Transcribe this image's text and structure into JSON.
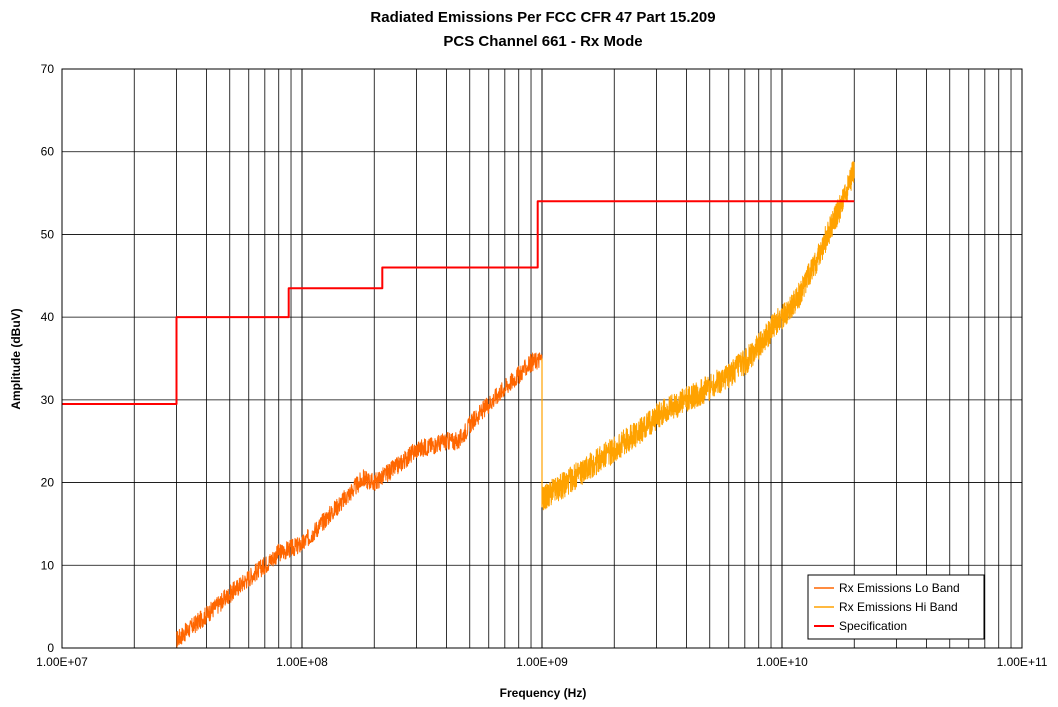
{
  "chart_data": {
    "type": "line",
    "title": "Radiated Emissions Per FCC CFR 47 Part 15.209",
    "subtitle": "PCS Channel 661 - Rx Mode",
    "xlabel": "Frequency (Hz)",
    "ylabel": "Amplitude (dBuV)",
    "x_scale": "log",
    "xlim": [
      10000000,
      100000000000
    ],
    "ylim": [
      0,
      70
    ],
    "x_tick_labels": [
      "1.00E+07",
      "1.00E+08",
      "1.00E+09",
      "1.00E+10",
      "1.00E+11"
    ],
    "y_tick_labels": [
      "0",
      "10",
      "20",
      "30",
      "40",
      "50",
      "60",
      "70"
    ],
    "grid": true,
    "legend_position": "bottom-right",
    "series": [
      {
        "name": "Rx Emissions Lo Band",
        "color": "#ff6600",
        "x": [
          30000000,
          40000000,
          50000000,
          60000000,
          70000000,
          80000000,
          100000000,
          120000000,
          150000000,
          180000000,
          200000000,
          250000000,
          300000000,
          350000000,
          400000000,
          450000000,
          500000000,
          600000000,
          700000000,
          800000000,
          900000000,
          1000000000
        ],
        "y": [
          1,
          4,
          6.5,
          8.5,
          10,
          11.5,
          12.5,
          15,
          18,
          20.5,
          20,
          22,
          24,
          24.5,
          25,
          25,
          27,
          29.5,
          31.5,
          33,
          34.5,
          35
        ]
      },
      {
        "name": "Rx Emissions Hi Band",
        "color": "#ffa200",
        "x": [
          1000000000,
          1200000000,
          1500000000,
          2000000000,
          2500000000,
          3000000000,
          4000000000,
          5000000000,
          6000000000,
          7000000000,
          8000000000,
          9000000000,
          10000000000,
          12000000000,
          14000000000,
          16000000000,
          18000000000,
          20000000000
        ],
        "y": [
          18,
          19.5,
          21.5,
          24,
          26,
          28,
          30,
          31.5,
          33,
          34.5,
          36.5,
          38.5,
          40,
          43,
          47,
          51,
          54,
          58
        ]
      },
      {
        "name": "Specification",
        "color": "#ff0000",
        "x": [
          10000000,
          30000000,
          30000000,
          88000000,
          88000000,
          216000000,
          216000000,
          960000000,
          960000000,
          20000000000
        ],
        "y": [
          29.5,
          29.5,
          40,
          40,
          43.5,
          43.5,
          46,
          46,
          54,
          54
        ]
      }
    ]
  }
}
